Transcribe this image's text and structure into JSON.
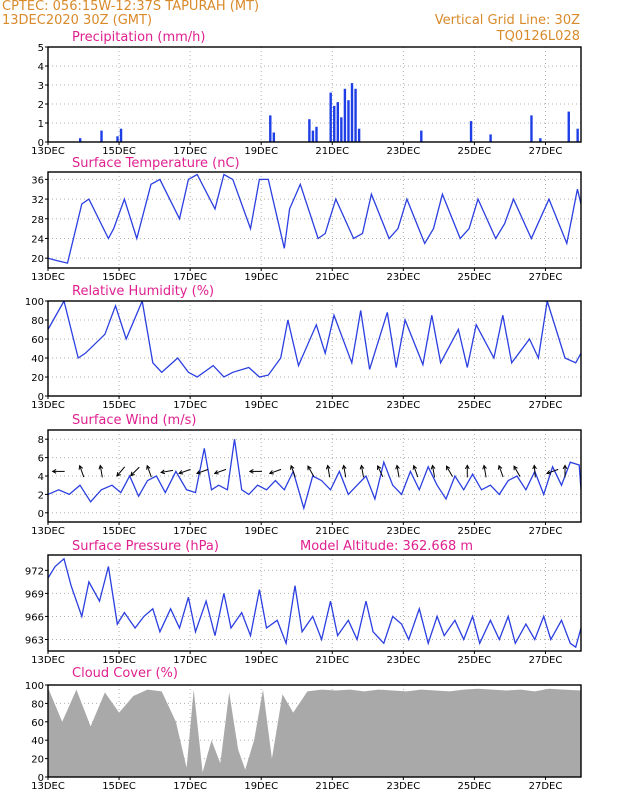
{
  "header": {
    "station": "CPTEC:   056:15W-12:37S   TAPURAH (MT)",
    "run": "13DEC2020 30Z (GMT)",
    "grid_note": "Vertical Grid Line: 30Z",
    "product_code": "TQ0126L028"
  },
  "x_axis": {
    "start_day": 13,
    "end_day": 28,
    "tick_labels": [
      "13DEC",
      "15DEC",
      "17DEC",
      "19DEC",
      "21DEC",
      "23DEC",
      "25DEC",
      "27DEC"
    ],
    "tick_days": [
      13,
      15,
      17,
      19,
      21,
      23,
      25,
      27
    ]
  },
  "colors": {
    "line": "#2b3fe0",
    "precip": "#1f3fe6",
    "cloud": "#a9a9a9",
    "title": "#e0208f",
    "header": "#d98a2b",
    "grid": "#b0b0b0"
  },
  "chart_data": [
    {
      "type": "bar",
      "title": "Precipitation (mm/h)",
      "ylim": [
        0,
        5
      ],
      "yticks": [
        "0",
        "1",
        "2",
        "3",
        "4",
        "5"
      ],
      "x_units": "day of December 2020",
      "x": [
        13.9,
        14.5,
        14.95,
        15.05,
        19.25,
        19.35,
        20.35,
        20.45,
        20.55,
        20.95,
        21.05,
        21.15,
        21.25,
        21.35,
        21.45,
        21.55,
        21.65,
        21.75,
        23.5,
        24.9,
        25.45,
        26.6,
        26.85,
        27.65,
        27.9
      ],
      "values": [
        0.2,
        0.6,
        0.3,
        0.7,
        1.4,
        0.5,
        1.2,
        0.6,
        0.8,
        2.6,
        1.9,
        2.1,
        1.3,
        2.8,
        2.2,
        3.1,
        2.8,
        0.7,
        0.6,
        1.1,
        0.4,
        1.4,
        0.2,
        1.6,
        0.7
      ]
    },
    {
      "type": "line",
      "title": "Surface Temperature (nC)",
      "ylim": [
        18,
        37.5
      ],
      "yticks": [
        "20",
        "24",
        "28",
        "32",
        "36"
      ],
      "x": [
        13.0,
        13.25,
        13.55,
        13.95,
        14.15,
        14.7,
        14.85,
        15.15,
        15.5,
        15.9,
        16.15,
        16.7,
        16.95,
        17.2,
        17.7,
        17.95,
        18.2,
        18.7,
        18.95,
        19.2,
        19.65,
        19.8,
        20.1,
        20.6,
        20.8,
        21.1,
        21.6,
        21.85,
        22.1,
        22.6,
        22.85,
        23.1,
        23.6,
        23.85,
        24.1,
        24.6,
        24.85,
        25.1,
        25.6,
        25.85,
        26.1,
        26.6,
        26.85,
        27.1,
        27.6,
        27.9,
        28.0
      ],
      "values": [
        20,
        19.5,
        19,
        31,
        32,
        24,
        26,
        32,
        24,
        35,
        36,
        28,
        36,
        37,
        30,
        37,
        36,
        26,
        36,
        36,
        22,
        30,
        35,
        24,
        25,
        32,
        24,
        25,
        33,
        24,
        26,
        32,
        23,
        26,
        33,
        24,
        26,
        32,
        24,
        27,
        32,
        24,
        28,
        32,
        23,
        34,
        31
      ]
    },
    {
      "type": "line",
      "title": "Relative Humidity (%)",
      "ylim": [
        0,
        100
      ],
      "yticks": [
        "0",
        "20",
        "40",
        "60",
        "80",
        "100"
      ],
      "x": [
        13.0,
        13.45,
        13.85,
        14.05,
        14.6,
        14.9,
        15.2,
        15.65,
        15.95,
        16.2,
        16.65,
        16.95,
        17.2,
        17.65,
        17.95,
        18.2,
        18.65,
        18.95,
        19.2,
        19.55,
        19.75,
        20.05,
        20.55,
        20.8,
        21.05,
        21.55,
        21.8,
        22.05,
        22.55,
        22.8,
        23.05,
        23.55,
        23.8,
        24.05,
        24.55,
        24.8,
        25.05,
        25.55,
        25.8,
        26.05,
        26.55,
        26.8,
        27.05,
        27.55,
        27.85,
        28.0
      ],
      "values": [
        70,
        100,
        40,
        45,
        65,
        95,
        60,
        100,
        35,
        25,
        40,
        25,
        20,
        32,
        20,
        25,
        30,
        20,
        22,
        40,
        80,
        32,
        75,
        45,
        85,
        35,
        90,
        28,
        88,
        30,
        80,
        33,
        85,
        35,
        70,
        30,
        75,
        40,
        85,
        35,
        60,
        40,
        100,
        40,
        35,
        45
      ]
    },
    {
      "type": "line",
      "title": "Surface Wind (m/s)",
      "ylim": [
        -1,
        9
      ],
      "yticks": [
        "0",
        "2",
        "4",
        "6",
        "8"
      ],
      "x": [
        13.0,
        13.3,
        13.6,
        13.9,
        14.2,
        14.5,
        14.8,
        15.05,
        15.3,
        15.55,
        15.8,
        16.05,
        16.3,
        16.6,
        16.9,
        17.15,
        17.4,
        17.6,
        17.8,
        18.05,
        18.25,
        18.45,
        18.65,
        18.9,
        19.15,
        19.4,
        19.65,
        19.9,
        20.2,
        20.45,
        20.7,
        20.95,
        21.2,
        21.45,
        21.7,
        21.95,
        22.2,
        22.45,
        22.7,
        22.95,
        23.2,
        23.45,
        23.7,
        23.95,
        24.2,
        24.45,
        24.7,
        24.95,
        25.2,
        25.45,
        25.7,
        25.95,
        26.2,
        26.45,
        26.7,
        26.95,
        27.2,
        27.45,
        27.7,
        27.95,
        28.0
      ],
      "values": [
        2,
        2.5,
        2,
        3,
        1.2,
        2.5,
        3,
        2.2,
        4,
        1.8,
        3.5,
        4,
        2.2,
        4.5,
        2.5,
        2.2,
        7,
        2.5,
        3,
        2.5,
        8,
        2.5,
        2,
        3,
        2.5,
        3.5,
        2.5,
        4.5,
        0.5,
        4,
        3.5,
        2.5,
        4.5,
        2,
        3,
        4,
        1.5,
        5.5,
        3,
        2,
        4.5,
        2.5,
        5,
        3,
        1.5,
        4,
        2.5,
        4.2,
        2.5,
        3,
        2,
        3.5,
        4,
        2.5,
        4.5,
        2,
        5,
        3,
        5.5,
        5.2,
        2.5
      ],
      "arrows_x": [
        13.3,
        13.95,
        14.5,
        15.05,
        15.45,
        15.85,
        16.35,
        16.85,
        17.35,
        17.85,
        18.85,
        19.4,
        19.9,
        20.4,
        20.9,
        21.35,
        21.85,
        22.35,
        22.85,
        23.35,
        23.85,
        24.3,
        24.8,
        25.3,
        25.75,
        26.2,
        26.7,
        27.2,
        27.55
      ],
      "arrows_deg": [
        180,
        110,
        100,
        230,
        225,
        110,
        190,
        200,
        200,
        200,
        180,
        200,
        110,
        120,
        100,
        100,
        100,
        115,
        100,
        110,
        100,
        120,
        90,
        100,
        110,
        120,
        95,
        200,
        90
      ]
    },
    {
      "type": "line",
      "title": "Surface Pressure (hPa)",
      "annotation": "Model Altitude: 362.668 m",
      "ylim": [
        961.5,
        974
      ],
      "yticks": [
        "963",
        "966",
        "969",
        "972"
      ],
      "x": [
        13.0,
        13.2,
        13.45,
        13.65,
        13.95,
        14.15,
        14.45,
        14.7,
        14.95,
        15.15,
        15.45,
        15.7,
        15.95,
        16.15,
        16.45,
        16.7,
        16.95,
        17.15,
        17.45,
        17.7,
        17.95,
        18.15,
        18.45,
        18.7,
        18.95,
        19.15,
        19.45,
        19.7,
        19.95,
        20.15,
        20.45,
        20.7,
        20.95,
        21.15,
        21.45,
        21.7,
        21.95,
        22.15,
        22.45,
        22.7,
        22.95,
        23.15,
        23.45,
        23.7,
        23.95,
        24.15,
        24.45,
        24.7,
        24.95,
        25.15,
        25.45,
        25.7,
        25.95,
        26.15,
        26.45,
        26.7,
        26.95,
        27.15,
        27.45,
        27.7,
        27.85,
        28.0
      ],
      "values": [
        971,
        972.5,
        973.5,
        970,
        966,
        970.5,
        968,
        972.5,
        965,
        966.5,
        964.5,
        966,
        967,
        964,
        967,
        964.5,
        968.5,
        964,
        968,
        963.5,
        969,
        964.5,
        966.5,
        963.5,
        969.5,
        964.5,
        965.5,
        962.5,
        970,
        964,
        966,
        963,
        968,
        963.5,
        965.5,
        963,
        968,
        964,
        962.5,
        966,
        965,
        963,
        967,
        962.5,
        966,
        963.5,
        965.5,
        963,
        966,
        962.5,
        965.5,
        963,
        966,
        962.5,
        965,
        963,
        966,
        963,
        965.5,
        962.5,
        962,
        964.5
      ]
    },
    {
      "type": "area",
      "title": "Cloud Cover (%)",
      "ylim": [
        0,
        100
      ],
      "yticks": [
        "0",
        "20",
        "40",
        "60",
        "80",
        "100"
      ],
      "x": [
        13.0,
        13.4,
        13.8,
        14.2,
        14.6,
        15.0,
        15.4,
        15.8,
        16.2,
        16.6,
        16.9,
        17.1,
        17.35,
        17.6,
        17.85,
        18.1,
        18.35,
        18.55,
        18.8,
        19.05,
        19.3,
        19.6,
        19.9,
        20.3,
        20.7,
        21.1,
        21.5,
        21.9,
        22.3,
        22.7,
        23.1,
        23.5,
        23.9,
        24.3,
        24.7,
        25.1,
        25.5,
        25.9,
        26.3,
        26.7,
        27.1,
        27.5,
        28.0
      ],
      "values": [
        97,
        60,
        95,
        55,
        92,
        70,
        88,
        95,
        93,
        60,
        10,
        95,
        5,
        40,
        15,
        92,
        30,
        8,
        40,
        95,
        20,
        90,
        70,
        93,
        95,
        94,
        95,
        93,
        95,
        94,
        93,
        95,
        94,
        93,
        95,
        96,
        95,
        94,
        95,
        93,
        96,
        95,
        94
      ]
    }
  ]
}
